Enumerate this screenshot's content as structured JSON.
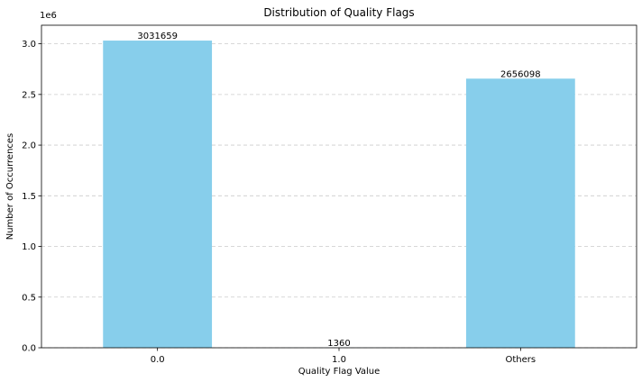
{
  "chart_data": {
    "type": "bar",
    "title": "Distribution of Quality Flags",
    "xlabel": "Quality Flag Value",
    "ylabel": "Number of Occurrences",
    "y_scale_label": "1e6",
    "y_scale": 1000000,
    "categories": [
      "0.0",
      "1.0",
      "Others"
    ],
    "values": [
      3031659,
      1360,
      2656098
    ],
    "data_labels": [
      "3031659",
      "1360",
      "2656098"
    ],
    "ylim": [
      0,
      3183242
    ],
    "yticks": [
      0,
      0.5,
      1.0,
      1.5,
      2.0,
      2.5,
      3.0
    ],
    "ytick_labels": [
      "0.0",
      "0.5",
      "1.0",
      "1.5",
      "2.0",
      "2.5",
      "3.0"
    ],
    "grid": "y-dashed",
    "bar_color": "#87ceeb"
  }
}
